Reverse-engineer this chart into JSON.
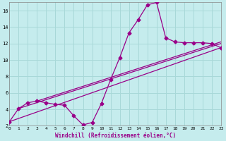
{
  "xlabel": "Windchill (Refroidissement éolien,°C)",
  "background_color": "#c5eced",
  "grid_color": "#a8d8d8",
  "line_color": "#990088",
  "xmin": 0,
  "xmax": 23,
  "ymin": 2,
  "ymax": 17,
  "yticks": [
    2,
    4,
    6,
    8,
    10,
    12,
    14,
    16
  ],
  "xticks": [
    0,
    1,
    2,
    3,
    4,
    5,
    6,
    7,
    8,
    9,
    10,
    11,
    12,
    13,
    14,
    15,
    16,
    17,
    18,
    19,
    20,
    21,
    22,
    23
  ],
  "main_x": [
    0,
    1,
    2,
    3,
    4,
    5,
    6,
    7,
    8,
    9,
    10,
    11,
    12,
    13,
    14,
    15,
    16,
    17,
    18,
    19,
    20,
    21,
    22,
    23
  ],
  "main_y": [
    2.5,
    4.1,
    4.8,
    5.0,
    4.8,
    4.6,
    4.5,
    3.2,
    2.1,
    2.4,
    4.7,
    7.6,
    10.3,
    13.3,
    14.9,
    16.7,
    17.0,
    12.7,
    12.2,
    12.1,
    12.1,
    12.1,
    12.0,
    11.5
  ],
  "trend1_x": [
    0,
    23
  ],
  "trend1_y": [
    2.5,
    11.5
  ],
  "trend2_x": [
    1,
    23
  ],
  "trend2_y": [
    4.1,
    12.0
  ],
  "trend3_x": [
    3,
    23
  ],
  "trend3_y": [
    5.0,
    12.2
  ],
  "markersize": 2.5,
  "linewidth": 0.9
}
